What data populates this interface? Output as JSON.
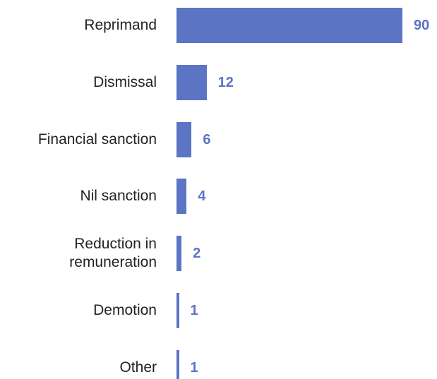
{
  "chart_data": {
    "type": "bar",
    "orientation": "horizontal",
    "categories": [
      "Reprimand",
      "Dismissal",
      "Financial sanction",
      "Nil sanction",
      "Reduction in remuneration",
      "Demotion",
      "Other"
    ],
    "values": [
      90,
      12,
      6,
      4,
      2,
      1,
      1
    ],
    "color": "#5b74c4",
    "label_color": "#5b74c4"
  }
}
